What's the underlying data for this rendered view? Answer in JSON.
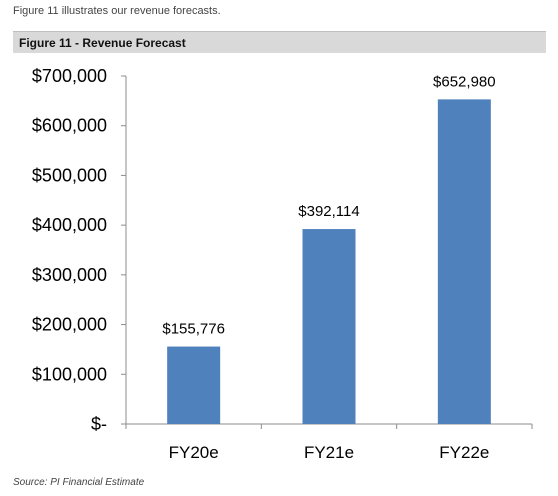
{
  "intro_text": "Figure 11 illustrates our revenue forecasts.",
  "figure_title": "Figure 11 - Revenue Forecast",
  "source_text": "Source: PI Financial Estimate",
  "colors": {
    "bar": "#4f81bd",
    "header_bg": "#d9d9d9",
    "axis": "#8c8c8c"
  },
  "chart_data": {
    "type": "bar",
    "title": "",
    "xlabel": "",
    "ylabel": "",
    "categories": [
      "FY20e",
      "FY21e",
      "FY22e"
    ],
    "values": [
      155776,
      392114,
      652980
    ],
    "data_labels": [
      "$155,776",
      "$392,114",
      "$652,980"
    ],
    "ylim": [
      0,
      700000
    ],
    "yticks": [
      0,
      100000,
      200000,
      300000,
      400000,
      500000,
      600000,
      700000
    ],
    "ytick_labels": [
      "$-",
      "$100,000",
      "$200,000",
      "$300,000",
      "$400,000",
      "$500,000",
      "$600,000",
      "$700,000"
    ],
    "grid": false,
    "legend": "none"
  }
}
